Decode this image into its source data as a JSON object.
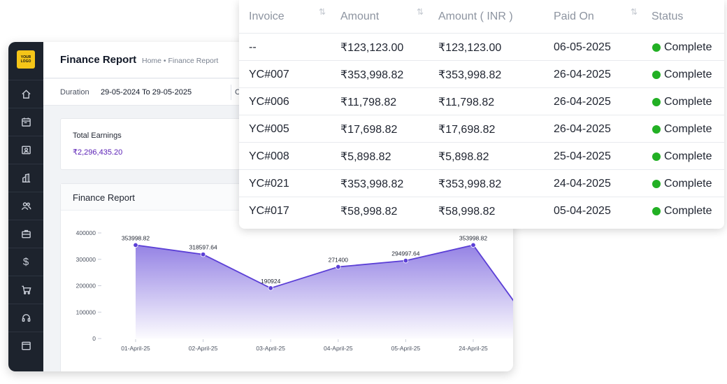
{
  "sidebar": {
    "logo_line1": "YOUR",
    "logo_line2": "LOGO",
    "items": [
      {
        "icon": "home-icon"
      },
      {
        "icon": "calendar-icon"
      },
      {
        "icon": "contact-card-icon"
      },
      {
        "icon": "buildings-icon"
      },
      {
        "icon": "users-icon"
      },
      {
        "icon": "briefcase-icon"
      },
      {
        "icon": "dollar-icon",
        "glyph": "$"
      },
      {
        "icon": "cart-icon"
      },
      {
        "icon": "headset-icon"
      },
      {
        "icon": "window-icon"
      }
    ]
  },
  "header": {
    "title": "Finance Report",
    "breadcrumb": "Home • Finance Report"
  },
  "filters": {
    "duration_label": "Duration",
    "duration_value": "29-05-2024 To 29-05-2025",
    "truncated_label": "C"
  },
  "earnings": {
    "label": "Total Earnings",
    "value": "₹2,296,435.20"
  },
  "chart_data": {
    "type": "area",
    "title": "Finance Report",
    "categories": [
      "01-April-25",
      "02-April-25",
      "03-April-25",
      "04-April-25",
      "05-April-25",
      "24-April-25"
    ],
    "values": [
      353998.82,
      318597.64,
      190924,
      271400,
      294997.64,
      353998.82
    ],
    "data_labels": [
      "353998.82",
      "318597.64",
      "190924",
      "271400",
      "294997.64",
      "353998.82"
    ],
    "y_ticks": [
      "400000",
      "300000",
      "200000",
      "100000",
      "0"
    ],
    "ylim": [
      0,
      400000
    ],
    "color": "#5b3fd6",
    "grid": false
  },
  "invoices": {
    "columns": [
      "Invoice",
      "Amount",
      "Amount ( INR )",
      "Paid On",
      "Status"
    ],
    "sort_icon": "⇅",
    "rows": [
      {
        "invoice": "--",
        "amount": "₹123,123.00",
        "amount_inr": "₹123,123.00",
        "paid_on": "06-05-2025",
        "status": "Complete"
      },
      {
        "invoice": "YC#007",
        "amount": "₹353,998.82",
        "amount_inr": "₹353,998.82",
        "paid_on": "26-04-2025",
        "status": "Complete"
      },
      {
        "invoice": "YC#006",
        "amount": "₹11,798.82",
        "amount_inr": "₹11,798.82",
        "paid_on": "26-04-2025",
        "status": "Complete"
      },
      {
        "invoice": "YC#005",
        "amount": "₹17,698.82",
        "amount_inr": "₹17,698.82",
        "paid_on": "26-04-2025",
        "status": "Complete"
      },
      {
        "invoice": "YC#008",
        "amount": "₹5,898.82",
        "amount_inr": "₹5,898.82",
        "paid_on": "25-04-2025",
        "status": "Complete"
      },
      {
        "invoice": "YC#021",
        "amount": "₹353,998.82",
        "amount_inr": "₹353,998.82",
        "paid_on": "24-04-2025",
        "status": "Complete"
      },
      {
        "invoice": "YC#017",
        "amount": "₹58,998.82",
        "amount_inr": "₹58,998.82",
        "paid_on": "05-04-2025",
        "status": "Complete"
      }
    ],
    "status_color": "#22b024"
  }
}
